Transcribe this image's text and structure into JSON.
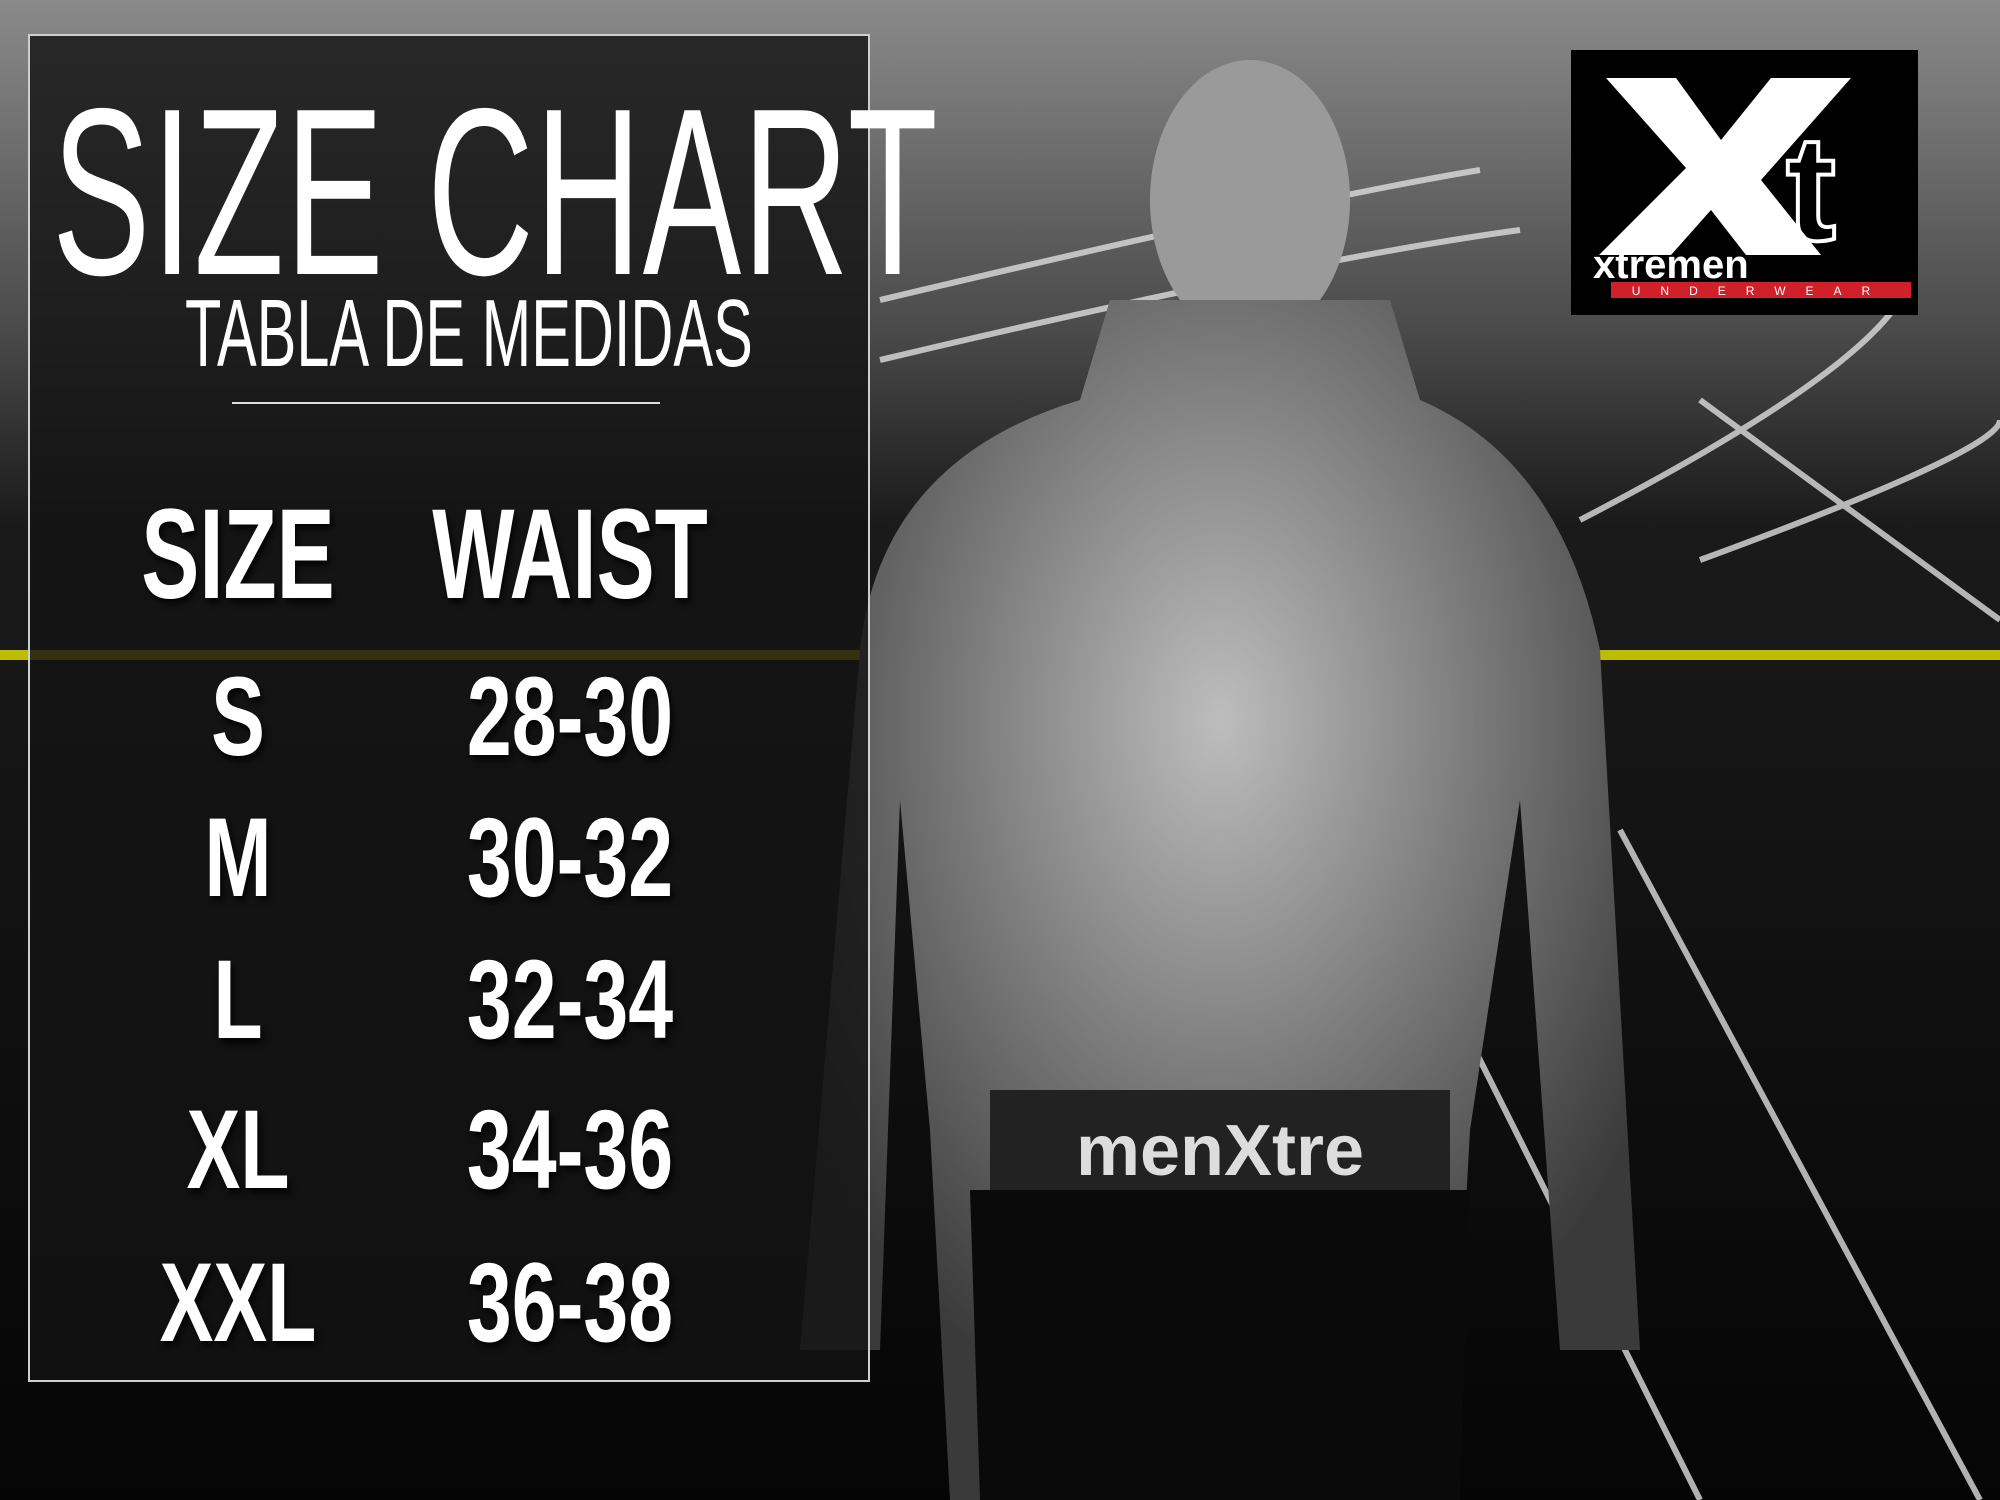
{
  "title": "SIZE CHART",
  "subtitle": "TABLA DE MEDIDAS",
  "table": {
    "headers": [
      "SIZE",
      "WAIST"
    ],
    "rows": [
      [
        "S",
        "28-30"
      ],
      [
        "M",
        "30-32"
      ],
      [
        "L",
        "32-34"
      ],
      [
        "XL",
        "34-36"
      ],
      [
        "XXL",
        "36-38"
      ]
    ]
  },
  "logo": {
    "mark": "Xt",
    "brand": "xtremen",
    "tagline": "UNDERWEAR",
    "accent": "#d0202a"
  },
  "waistband_text": "menXtre"
}
